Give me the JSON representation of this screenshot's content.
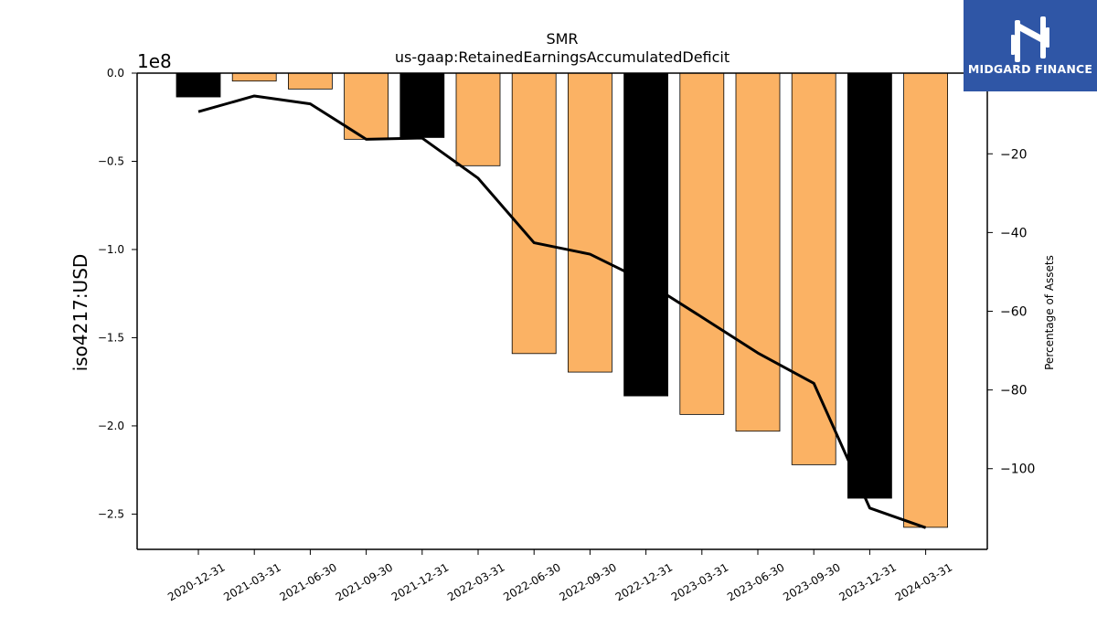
{
  "chart_data": {
    "type": "bar",
    "title": "SMR",
    "subtitle": "us-gaap:RetainedEarningsAccumulatedDeficit",
    "ylabel": "iso4217:USD",
    "y_offset_label": "1e8",
    "y2label": "Percentage of Assets",
    "categories": [
      "2020-12-31",
      "2021-03-31",
      "2021-06-30",
      "2021-09-30",
      "2021-12-31",
      "2022-03-31",
      "2022-06-30",
      "2022-09-30",
      "2022-12-31",
      "2023-03-31",
      "2023-06-30",
      "2023-09-30",
      "2023-12-31",
      "2024-03-31"
    ],
    "values": [
      -13500000,
      -4500000,
      -9000000,
      -37500000,
      -36500000,
      -52500000,
      -159000000,
      -169500000,
      -183000000,
      -193500000,
      -203000000,
      -222000000,
      -241000000,
      -257500000
    ],
    "bar_colors": [
      "#000000",
      "#fbb264",
      "#fbb264",
      "#fbb264",
      "#000000",
      "#fbb264",
      "#fbb264",
      "#fbb264",
      "#000000",
      "#fbb264",
      "#fbb264",
      "#fbb264",
      "#000000",
      "#fbb264"
    ],
    "ylim": [
      -270000000,
      0
    ],
    "yticks": [
      0,
      -50000000,
      -100000000,
      -150000000,
      -200000000,
      -250000000
    ],
    "ytick_labels": [
      "0.0",
      "−0.5",
      "−1.0",
      "−1.5",
      "−2.0",
      "−2.5"
    ],
    "series": [
      {
        "axis": "right",
        "type": "line",
        "color": "#000000",
        "values": [
          -9.3,
          -5.3,
          -7.3,
          -16.3,
          -16.0,
          -26.2,
          -42.6,
          -45.5,
          -52.5,
          -61.5,
          -70.6,
          -78.3,
          -110.0,
          -115.0
        ]
      }
    ],
    "y2lim": [
      -120.5,
      0.5
    ],
    "y2ticks": [
      -20,
      -40,
      -60,
      -80,
      -100
    ],
    "y2tick_labels": [
      "−20",
      "−40",
      "−60",
      "−80",
      "−100"
    ],
    "grid": false,
    "legend": "none"
  },
  "logo": {
    "text": "MIDGARD FINANCE",
    "background": "#2f56a6"
  }
}
